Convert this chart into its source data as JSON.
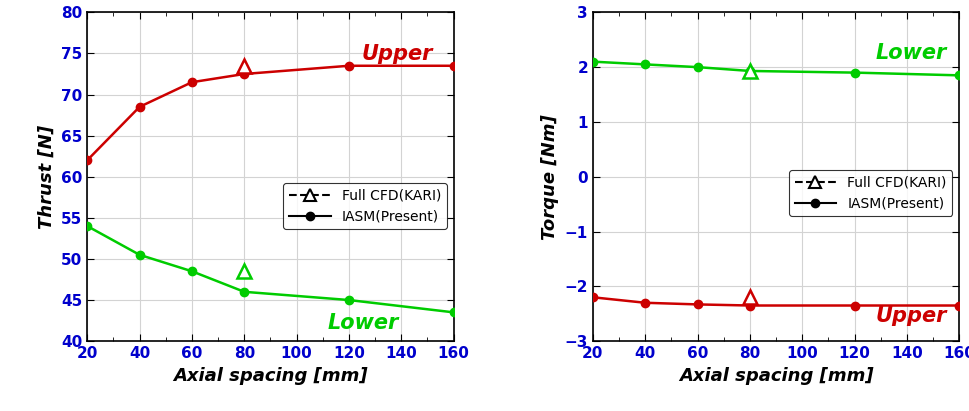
{
  "axial_spacing": [
    20,
    40,
    60,
    80,
    120,
    160
  ],
  "thrust_upper_iasm": [
    62.0,
    68.5,
    71.5,
    72.5,
    73.5,
    73.5
  ],
  "thrust_lower_iasm": [
    54.0,
    50.5,
    48.5,
    46.0,
    45.0,
    43.5
  ],
  "thrust_upper_cfd_x": [
    80
  ],
  "thrust_upper_cfd_y": [
    73.5
  ],
  "thrust_lower_cfd_x": [
    80
  ],
  "thrust_lower_cfd_y": [
    48.5
  ],
  "torque_lower_iasm": [
    2.1,
    2.05,
    2.0,
    1.93,
    1.9,
    1.85
  ],
  "torque_upper_iasm": [
    -2.2,
    -2.3,
    -2.33,
    -2.35,
    -2.35,
    -2.35
  ],
  "torque_lower_cfd_x": [
    80
  ],
  "torque_lower_cfd_y": [
    1.93
  ],
  "torque_upper_cfd_x": [
    80
  ],
  "torque_upper_cfd_y": [
    -2.2
  ],
  "color_upper": "#cc0000",
  "color_lower": "#00cc00",
  "thrust_ylim": [
    40,
    80
  ],
  "thrust_yticks": [
    40,
    45,
    50,
    55,
    60,
    65,
    70,
    75,
    80
  ],
  "torque_ylim": [
    -3,
    3
  ],
  "torque_yticks": [
    -3,
    -2,
    -1,
    0,
    1,
    2,
    3
  ],
  "xlim": [
    20,
    160
  ],
  "xticks": [
    20,
    40,
    60,
    80,
    100,
    120,
    140,
    160
  ],
  "xlabel": "Axial spacing [mm]",
  "ylabel_thrust": "Thrust [N]",
  "ylabel_torque": "Torque [Nm]",
  "label_cfd": "Full CFD(KARI)",
  "label_iasm": "IASM(Present)",
  "label_upper": "Upper",
  "label_lower": "Lower",
  "legend_fontsize": 10,
  "label_fontsize": 13,
  "tick_fontsize": 11,
  "annot_fontsize": 15,
  "tick_label_color": "#0000cc"
}
